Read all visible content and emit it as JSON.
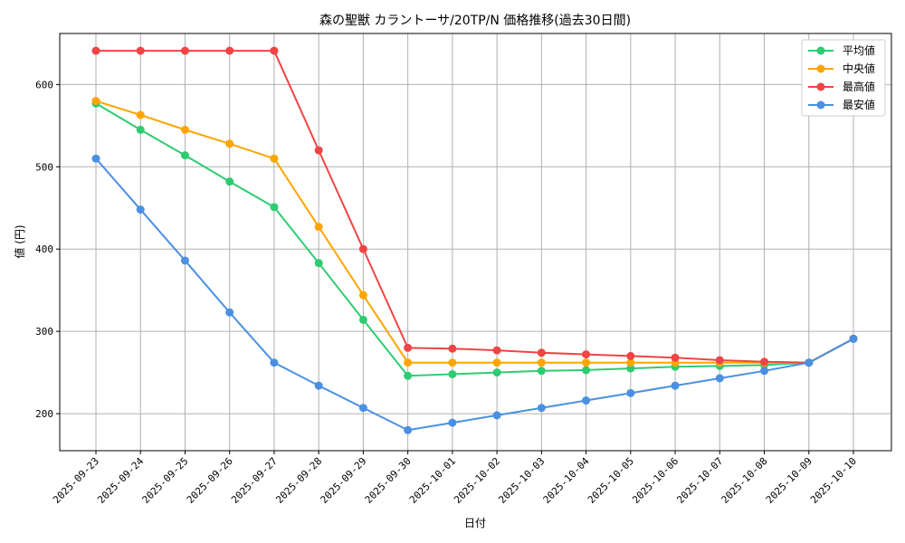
{
  "chart_data": {
    "type": "line",
    "title": "森の聖獣 カラントーサ/20TP/N 価格推移(過去30日間)",
    "xlabel": "日付",
    "ylabel": "値 (円)",
    "ylim": [
      155,
      662
    ],
    "yticks": [
      200,
      300,
      400,
      500,
      600
    ],
    "grid": true,
    "legend_position": "top-right",
    "categories": [
      "2025-09-23",
      "2025-09-24",
      "2025-09-25",
      "2025-09-26",
      "2025-09-27",
      "2025-09-28",
      "2025-09-29",
      "2025-09-30",
      "2025-10-01",
      "2025-10-02",
      "2025-10-03",
      "2025-10-04",
      "2025-10-05",
      "2025-10-06",
      "2025-10-07",
      "2025-10-08",
      "2025-10-09",
      "2025-10-10"
    ],
    "series": [
      {
        "name": "平均値",
        "color": "#2ecc71",
        "values": [
          577,
          545,
          514,
          482,
          451,
          383,
          314,
          246,
          248,
          250,
          252,
          253,
          255,
          257,
          258,
          259,
          262,
          291
        ]
      },
      {
        "name": "中央値",
        "color": "#ffa500",
        "values": [
          580,
          563,
          545,
          528,
          510,
          427,
          344,
          262,
          262,
          262,
          262,
          262,
          262,
          262,
          262,
          262,
          262,
          291
        ]
      },
      {
        "name": "最高値",
        "color": "#ef4444",
        "values": [
          641,
          641,
          641,
          641,
          641,
          520,
          400,
          280,
          279,
          277,
          274,
          272,
          270,
          268,
          265,
          263,
          262,
          291
        ]
      },
      {
        "name": "最安値",
        "color": "#4a90e2",
        "values": [
          510,
          448,
          386,
          323,
          262,
          234,
          207,
          180,
          189,
          198,
          207,
          216,
          225,
          234,
          243,
          252,
          262,
          291
        ]
      }
    ]
  }
}
